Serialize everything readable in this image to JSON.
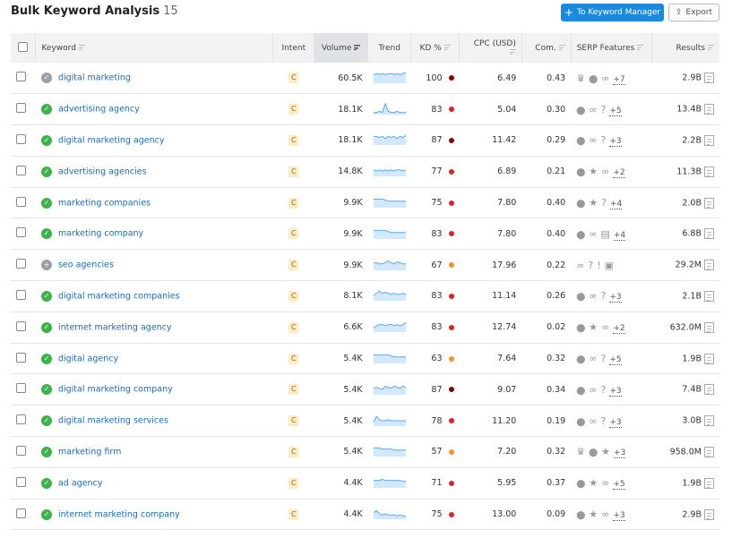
{
  "header": {
    "title": "Bulk Keyword Analysis",
    "count": "15",
    "keyword_manager_label": "To Keyword Manager",
    "export_label": "Export"
  },
  "colors": {
    "accent": "#1a8ae0",
    "link": "#1a6bb8",
    "kd_very_hard": "#8b0000",
    "kd_hard": "#e0202a",
    "kd_difficult": "#f7902a"
  },
  "columns": [
    "Keyword",
    "Intent",
    "Volume",
    "Trend",
    "KD %",
    "CPC (USD)",
    "Com.",
    "SERP Features",
    "Results"
  ],
  "rows": [
    {
      "status": "done-grey",
      "keyword": "digital marketing",
      "intent": "C",
      "volume": "60.5K",
      "trend": [
        8,
        9,
        8,
        9,
        8,
        9,
        9,
        8,
        9,
        8,
        9,
        10
      ],
      "kd": "100",
      "kd_level": "very_hard",
      "cpc": "6.49",
      "com": "0.43",
      "serp": [
        "crown",
        "pin",
        "link"
      ],
      "more": "+7",
      "results": "2.9B"
    },
    {
      "status": "done",
      "keyword": "advertising agency",
      "intent": "C",
      "volume": "18.1K",
      "trend": [
        2,
        2,
        3,
        2,
        10,
        3,
        2,
        2,
        3,
        2,
        2,
        2
      ],
      "kd": "83",
      "kd_level": "hard",
      "cpc": "5.04",
      "com": "0.30",
      "serp": [
        "pin",
        "link",
        "question"
      ],
      "more": "+5",
      "results": "13.4B"
    },
    {
      "status": "done",
      "keyword": "digital marketing agency",
      "intent": "C",
      "volume": "18.1K",
      "trend": [
        8,
        8,
        7,
        8,
        6,
        8,
        7,
        8,
        6,
        8,
        7,
        9
      ],
      "kd": "87",
      "kd_level": "very_hard",
      "cpc": "11.42",
      "com": "0.29",
      "serp": [
        "pin",
        "link",
        "question"
      ],
      "more": "+3",
      "results": "2.2B"
    },
    {
      "status": "done",
      "keyword": "advertising agencies",
      "intent": "C",
      "volume": "14.8K",
      "trend": [
        6,
        5,
        6,
        5,
        6,
        5,
        6,
        5,
        6,
        6,
        5,
        6
      ],
      "kd": "77",
      "kd_level": "hard",
      "cpc": "6.89",
      "com": "0.21",
      "serp": [
        "pin",
        "star",
        "link"
      ],
      "more": "+2",
      "results": "11.3B"
    },
    {
      "status": "done",
      "keyword": "marketing companies",
      "intent": "C",
      "volume": "9.9K",
      "trend": [
        8,
        8,
        8,
        8,
        7,
        6,
        6,
        6,
        6,
        6,
        6,
        6
      ],
      "kd": "75",
      "kd_level": "hard",
      "cpc": "7.80",
      "com": "0.40",
      "serp": [
        "pin",
        "star",
        "question"
      ],
      "more": "+4",
      "results": "2.0B"
    },
    {
      "status": "done",
      "keyword": "marketing company",
      "intent": "C",
      "volume": "9.9K",
      "trend": [
        8,
        8,
        8,
        8,
        8,
        7,
        6,
        6,
        6,
        6,
        6,
        6
      ],
      "kd": "83",
      "kd_level": "hard",
      "cpc": "7.80",
      "com": "0.40",
      "serp": [
        "pin",
        "link",
        "news"
      ],
      "more": "+4",
      "results": "6.8B"
    },
    {
      "status": "add",
      "keyword": "seo agencies",
      "intent": "C",
      "volume": "9.9K",
      "trend": [
        7,
        7,
        6,
        6,
        7,
        9,
        7,
        6,
        8,
        7,
        6,
        6
      ],
      "kd": "67",
      "kd_level": "difficult",
      "cpc": "17.96",
      "com": "0.22",
      "serp": [
        "link",
        "question",
        "review",
        "ad"
      ],
      "more": "",
      "results": "29.2M"
    },
    {
      "status": "done",
      "keyword": "digital marketing companies",
      "intent": "C",
      "volume": "8.1K",
      "trend": [
        5,
        7,
        9,
        7,
        8,
        7,
        6,
        7,
        6,
        6,
        7,
        6
      ],
      "kd": "83",
      "kd_level": "hard",
      "cpc": "11.14",
      "com": "0.26",
      "serp": [
        "pin",
        "link",
        "question"
      ],
      "more": "+3",
      "results": "2.1B"
    },
    {
      "status": "done",
      "keyword": "internet marketing agency",
      "intent": "C",
      "volume": "6.6K",
      "trend": [
        4,
        6,
        7,
        7,
        6,
        7,
        7,
        6,
        7,
        6,
        7,
        9
      ],
      "kd": "83",
      "kd_level": "hard",
      "cpc": "12.74",
      "com": "0.02",
      "serp": [
        "pin",
        "star",
        "link"
      ],
      "more": "+2",
      "results": "632.0M"
    },
    {
      "status": "done",
      "keyword": "digital agency",
      "intent": "C",
      "volume": "5.4K",
      "trend": [
        8,
        8,
        8,
        8,
        8,
        8,
        7,
        6,
        6,
        6,
        6,
        6
      ],
      "kd": "63",
      "kd_level": "difficult",
      "cpc": "7.64",
      "com": "0.32",
      "serp": [
        "pin",
        "link",
        "question"
      ],
      "more": "+5",
      "results": "1.9B"
    },
    {
      "status": "done",
      "keyword": "digital marketing company",
      "intent": "C",
      "volume": "5.4K",
      "trend": [
        6,
        7,
        6,
        5,
        8,
        7,
        6,
        8,
        7,
        6,
        8,
        7
      ],
      "kd": "87",
      "kd_level": "very_hard",
      "cpc": "9.07",
      "com": "0.34",
      "serp": [
        "pin",
        "link",
        "question"
      ],
      "more": "+3",
      "results": "7.4B"
    },
    {
      "status": "done",
      "keyword": "digital marketing services",
      "intent": "C",
      "volume": "5.4K",
      "trend": [
        4,
        9,
        6,
        5,
        5,
        6,
        5,
        5,
        5,
        5,
        5,
        5
      ],
      "kd": "78",
      "kd_level": "hard",
      "cpc": "11.20",
      "com": "0.19",
      "serp": [
        "pin",
        "link",
        "question"
      ],
      "more": "+3",
      "results": "3.0B"
    },
    {
      "status": "done",
      "keyword": "marketing firm",
      "intent": "C",
      "volume": "5.4K",
      "trend": [
        8,
        8,
        8,
        7,
        7,
        7,
        7,
        6,
        6,
        6,
        6,
        6
      ],
      "kd": "57",
      "kd_level": "difficult",
      "cpc": "7.20",
      "com": "0.32",
      "serp": [
        "crown",
        "pin",
        "star"
      ],
      "more": "+3",
      "results": "958.0M"
    },
    {
      "status": "done",
      "keyword": "ad agency",
      "intent": "C",
      "volume": "4.4K",
      "trend": [
        7,
        7,
        7,
        8,
        7,
        7,
        7,
        7,
        7,
        7,
        6,
        6
      ],
      "kd": "71",
      "kd_level": "hard",
      "cpc": "5.95",
      "com": "0.37",
      "serp": [
        "pin",
        "star",
        "link"
      ],
      "more": "+5",
      "results": "1.9B"
    },
    {
      "status": "done",
      "keyword": "internet marketing company",
      "intent": "C",
      "volume": "4.4K",
      "trend": [
        6,
        8,
        5,
        4,
        5,
        4,
        4,
        4,
        3,
        4,
        3,
        3
      ],
      "kd": "75",
      "kd_level": "hard",
      "cpc": "13.00",
      "com": "0.09",
      "serp": [
        "pin",
        "star",
        "link"
      ],
      "more": "+3",
      "results": "2.9B"
    }
  ]
}
